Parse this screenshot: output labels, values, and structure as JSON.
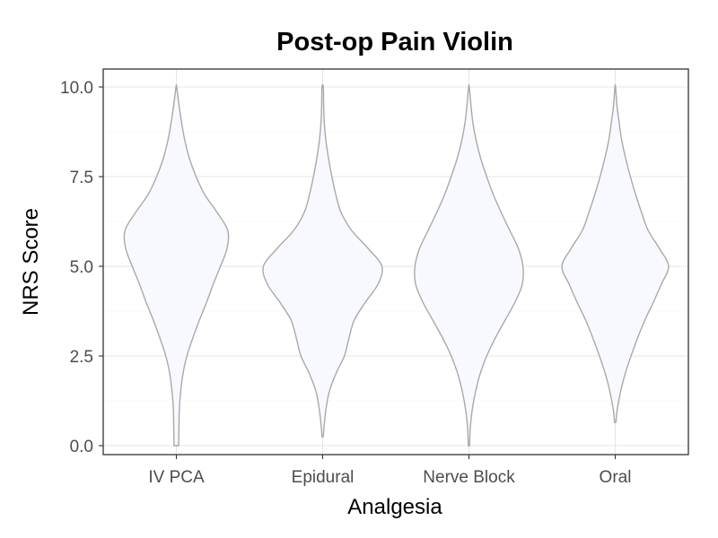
{
  "chart_data": {
    "type": "violin",
    "title": "Post-op Pain Violin",
    "xlabel": "Analgesia",
    "ylabel": "NRS Score",
    "categories": [
      "IV PCA",
      "Epidural",
      "Nerve Block",
      "Oral"
    ],
    "ylim": [
      -0.25,
      10.5
    ],
    "yticks": [
      0.0,
      2.5,
      5.0,
      7.5,
      10.0
    ],
    "ytick_labels": [
      "0.0",
      "2.5",
      "5.0",
      "7.5",
      "10.0"
    ],
    "grid": true,
    "legend": "none",
    "colors": {
      "fill": "#F8F9FE",
      "outline": "#A9A9A9",
      "grid": "#E5E5E5",
      "panel_border": "#333333"
    },
    "series": [
      {
        "category": "IV PCA",
        "range": [
          0.0,
          10.0
        ],
        "density_profile": [
          {
            "y": 0.0,
            "w": 0.035
          },
          {
            "y": 0.5,
            "w": 0.04
          },
          {
            "y": 1.0,
            "w": 0.045
          },
          {
            "y": 1.5,
            "w": 0.065
          },
          {
            "y": 2.0,
            "w": 0.1
          },
          {
            "y": 2.5,
            "w": 0.16
          },
          {
            "y": 3.0,
            "w": 0.25
          },
          {
            "y": 3.5,
            "w": 0.35
          },
          {
            "y": 4.0,
            "w": 0.46
          },
          {
            "y": 4.5,
            "w": 0.56
          },
          {
            "y": 5.0,
            "w": 0.67
          },
          {
            "y": 5.5,
            "w": 0.77
          },
          {
            "y": 6.0,
            "w": 0.78
          },
          {
            "y": 6.5,
            "w": 0.62
          },
          {
            "y": 7.0,
            "w": 0.43
          },
          {
            "y": 7.5,
            "w": 0.3
          },
          {
            "y": 8.0,
            "w": 0.2
          },
          {
            "y": 8.5,
            "w": 0.13
          },
          {
            "y": 9.0,
            "w": 0.08
          },
          {
            "y": 9.5,
            "w": 0.04
          },
          {
            "y": 10.0,
            "w": 0.005
          }
        ]
      },
      {
        "category": "Epidural",
        "range": [
          0.25,
          10.0
        ],
        "density_profile": [
          {
            "y": 0.25,
            "w": 0.01
          },
          {
            "y": 0.5,
            "w": 0.02
          },
          {
            "y": 1.0,
            "w": 0.05
          },
          {
            "y": 1.5,
            "w": 0.1
          },
          {
            "y": 2.0,
            "w": 0.2
          },
          {
            "y": 2.5,
            "w": 0.33
          },
          {
            "y": 3.0,
            "w": 0.4
          },
          {
            "y": 3.5,
            "w": 0.48
          },
          {
            "y": 4.0,
            "w": 0.65
          },
          {
            "y": 4.5,
            "w": 0.84
          },
          {
            "y": 5.0,
            "w": 0.9
          },
          {
            "y": 5.5,
            "w": 0.69
          },
          {
            "y": 6.0,
            "w": 0.44
          },
          {
            "y": 6.5,
            "w": 0.28
          },
          {
            "y": 7.0,
            "w": 0.2
          },
          {
            "y": 7.5,
            "w": 0.14
          },
          {
            "y": 8.0,
            "w": 0.09
          },
          {
            "y": 8.5,
            "w": 0.05
          },
          {
            "y": 9.0,
            "w": 0.025
          },
          {
            "y": 9.5,
            "w": 0.015
          },
          {
            "y": 10.0,
            "w": 0.01
          }
        ]
      },
      {
        "category": "Nerve Block",
        "range": [
          0.0,
          10.0
        ],
        "density_profile": [
          {
            "y": 0.0,
            "w": 0.01
          },
          {
            "y": 0.5,
            "w": 0.02
          },
          {
            "y": 1.0,
            "w": 0.05
          },
          {
            "y": 1.5,
            "w": 0.1
          },
          {
            "y": 2.0,
            "w": 0.17
          },
          {
            "y": 2.5,
            "w": 0.27
          },
          {
            "y": 3.0,
            "w": 0.4
          },
          {
            "y": 3.5,
            "w": 0.55
          },
          {
            "y": 4.0,
            "w": 0.7
          },
          {
            "y": 4.5,
            "w": 0.81
          },
          {
            "y": 5.0,
            "w": 0.82
          },
          {
            "y": 5.5,
            "w": 0.75
          },
          {
            "y": 6.0,
            "w": 0.62
          },
          {
            "y": 6.5,
            "w": 0.49
          },
          {
            "y": 7.0,
            "w": 0.37
          },
          {
            "y": 7.5,
            "w": 0.27
          },
          {
            "y": 8.0,
            "w": 0.18
          },
          {
            "y": 8.5,
            "w": 0.11
          },
          {
            "y": 9.0,
            "w": 0.06
          },
          {
            "y": 9.5,
            "w": 0.03
          },
          {
            "y": 10.0,
            "w": 0.005
          }
        ]
      },
      {
        "category": "Oral",
        "range": [
          0.65,
          10.0
        ],
        "density_profile": [
          {
            "y": 0.65,
            "w": 0.01
          },
          {
            "y": 1.0,
            "w": 0.03
          },
          {
            "y": 1.5,
            "w": 0.08
          },
          {
            "y": 2.0,
            "w": 0.15
          },
          {
            "y": 2.5,
            "w": 0.24
          },
          {
            "y": 3.0,
            "w": 0.34
          },
          {
            "y": 3.5,
            "w": 0.45
          },
          {
            "y": 4.0,
            "w": 0.58
          },
          {
            "y": 4.5,
            "w": 0.7
          },
          {
            "y": 5.0,
            "w": 0.81
          },
          {
            "y": 5.5,
            "w": 0.67
          },
          {
            "y": 6.0,
            "w": 0.5
          },
          {
            "y": 6.5,
            "w": 0.4
          },
          {
            "y": 7.0,
            "w": 0.31
          },
          {
            "y": 7.5,
            "w": 0.23
          },
          {
            "y": 8.0,
            "w": 0.16
          },
          {
            "y": 8.5,
            "w": 0.1
          },
          {
            "y": 9.0,
            "w": 0.06
          },
          {
            "y": 9.5,
            "w": 0.025
          },
          {
            "y": 10.0,
            "w": 0.005
          }
        ]
      }
    ]
  }
}
